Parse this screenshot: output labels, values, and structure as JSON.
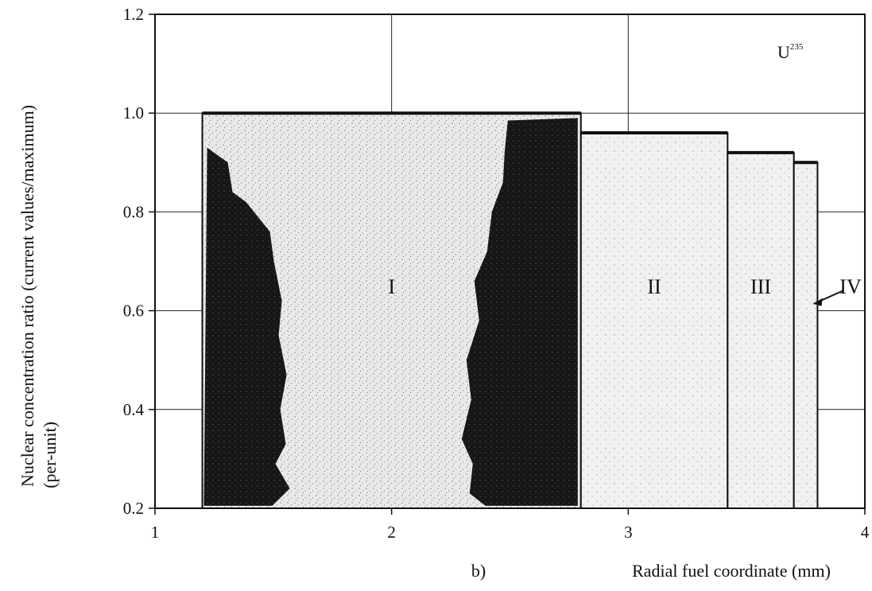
{
  "chart_data": {
    "type": "bar",
    "title": "",
    "subtitle": "",
    "panel_label": "b)",
    "annotation": "U",
    "annotation_superscript": "235",
    "xlabel": "Radial fuel coordinate (mm)",
    "ylabel_line1": "Nuclear concentration ratio (current values/maximum)",
    "ylabel_line2": "(per-unit)",
    "xlim": [
      1,
      4
    ],
    "ylim": [
      0.2,
      1.2
    ],
    "x_ticks": [
      1,
      2,
      3,
      4
    ],
    "y_ticks": [
      0.2,
      0.4,
      0.6,
      0.8,
      1.0,
      1.2
    ],
    "x_tick_labels": [
      "1",
      "2",
      "3",
      "4"
    ],
    "y_tick_labels": [
      "0.2",
      "0.4",
      "0.6",
      "0.8",
      "1.0",
      "1.2"
    ],
    "grid": true,
    "zones": [
      {
        "label": "I",
        "x_start": 1.2,
        "x_end": 2.8,
        "value": 1.0
      },
      {
        "label": "II",
        "x_start": 2.8,
        "x_end": 3.42,
        "value": 0.96
      },
      {
        "label": "III",
        "x_start": 3.42,
        "x_end": 3.7,
        "value": 0.92
      },
      {
        "label": "IV",
        "x_start": 3.7,
        "x_end": 3.8,
        "value": 0.9
      }
    ],
    "colors": {
      "zone_fill": "#e6e6e6",
      "zone_dark": "#1a1a1a",
      "outline": "#111111",
      "grid": "#222222"
    }
  }
}
